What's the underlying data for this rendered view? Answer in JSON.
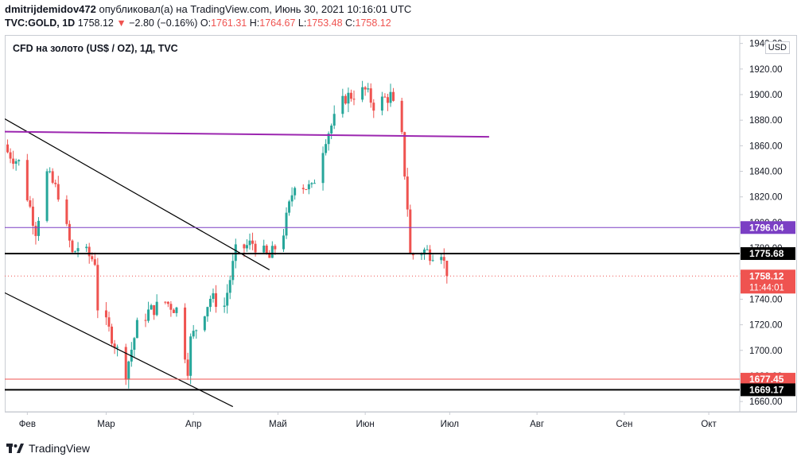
{
  "header": {
    "user": "dmitrijdemidov472",
    "published_text": "опубликовал(а) на TradingView.com, Июнь 30, 2021 10:16:01 UTC",
    "symbol": "TVC:GOLD, 1D",
    "last": "1758.12",
    "change_arrow": "▼",
    "change": "−2.80 (−0.16%)",
    "o_label": "O:",
    "o_value": "1761.31",
    "h_label": "H:",
    "h_value": "1764.67",
    "l_label": "L:",
    "l_value": "1753.48",
    "c_label": "C:",
    "c_value": "1758.12"
  },
  "legend": "CFD на золото (US$ / OZ), 1Д, TVC",
  "currency": "USD",
  "footer": {
    "brand": "TradingView"
  },
  "colors": {
    "up": "#26a69a",
    "down": "#ef5350",
    "purple": "#9c27b0",
    "axis_purple": "#7b3fc4",
    "black": "#000000"
  },
  "chart_data": {
    "type": "candlestick",
    "title": "CFD на золото (US$ / OZ), 1Д, TVC",
    "ylim": [
      1652,
      1946
    ],
    "y_ticks": [
      1660,
      1680,
      1700,
      1720,
      1740,
      1760,
      1780,
      1800,
      1820,
      1840,
      1860,
      1880,
      1900,
      1920,
      1940
    ],
    "x_labels": [
      "Фев",
      "Мар",
      "Апр",
      "Май",
      "Июн",
      "Июл",
      "Авг",
      "Сен",
      "Окт"
    ],
    "x_label_dates": [
      "2021-02-01",
      "2021-03-01",
      "2021-04-01",
      "2021-05-01",
      "2021-06-01",
      "2021-07-01",
      "2021-08-01",
      "2021-09-01",
      "2021-10-01"
    ],
    "x_range": [
      "2021-01-24",
      "2021-10-12"
    ],
    "close_path": [
      [
        "2021-01-25",
        1855
      ],
      [
        "2021-01-29",
        1847
      ],
      [
        "2021-02-04",
        1794
      ],
      [
        "2021-02-08",
        1838
      ],
      [
        "2021-02-12",
        1823
      ],
      [
        "2021-02-17",
        1775
      ],
      [
        "2021-02-19",
        1781
      ],
      [
        "2021-02-25",
        1770
      ],
      [
        "2021-02-26",
        1734
      ],
      [
        "2021-03-03",
        1711
      ],
      [
        "2021-03-08",
        1683
      ],
      [
        "2021-03-12",
        1719
      ],
      [
        "2021-03-16",
        1730
      ],
      [
        "2021-03-22",
        1738
      ],
      [
        "2021-03-26",
        1732
      ],
      [
        "2021-03-30",
        1686
      ],
      [
        "2021-03-31",
        1708
      ],
      [
        "2021-04-07",
        1741
      ],
      [
        "2021-04-12",
        1735
      ],
      [
        "2021-04-16",
        1777
      ],
      [
        "2021-04-22",
        1784
      ],
      [
        "2021-04-28",
        1772
      ],
      [
        "2021-05-03",
        1793
      ],
      [
        "2021-05-07",
        1832
      ],
      [
        "2021-05-13",
        1826
      ],
      [
        "2021-05-18",
        1867
      ],
      [
        "2021-05-25",
        1898
      ],
      [
        "2021-06-01",
        1903
      ],
      [
        "2021-06-04",
        1892
      ],
      [
        "2021-06-10",
        1899
      ],
      [
        "2021-06-14",
        1866
      ],
      [
        "2021-06-16",
        1812
      ],
      [
        "2021-06-17",
        1774
      ],
      [
        "2021-06-22",
        1778
      ],
      [
        "2021-06-24",
        1776
      ],
      [
        "2021-06-28",
        1778
      ],
      [
        "2021-06-30",
        1758.12
      ]
    ],
    "trend_lines": [
      {
        "from": [
          "2021-01-24",
          1881
        ],
        "to": [
          "2021-04-28",
          1763
        ],
        "color": "#000000"
      },
      {
        "from": [
          "2021-01-24",
          1745
        ],
        "to": [
          "2021-04-15",
          1656
        ],
        "color": "#000000"
      },
      {
        "from": [
          "2021-01-24",
          1871
        ],
        "to": [
          "2021-07-15",
          1867
        ],
        "color": "#9c27b0"
      }
    ],
    "horizontal_lines": [
      {
        "value": 1796.04,
        "label": "1796.04",
        "color": "#7b3fc4",
        "width": 1
      },
      {
        "value": 1775.68,
        "label": "1775.68",
        "color": "#000000",
        "width": 2
      },
      {
        "value": 1758.12,
        "label": "1758.12",
        "sublabel": "11:44:01",
        "color": "#ef5350",
        "width": 1,
        "dotted": true
      },
      {
        "value": 1677.45,
        "label": "1677.45",
        "color": "#ef5350",
        "width": 1
      },
      {
        "value": 1669.17,
        "label": "1669.17",
        "color": "#000000",
        "width": 2
      }
    ]
  }
}
